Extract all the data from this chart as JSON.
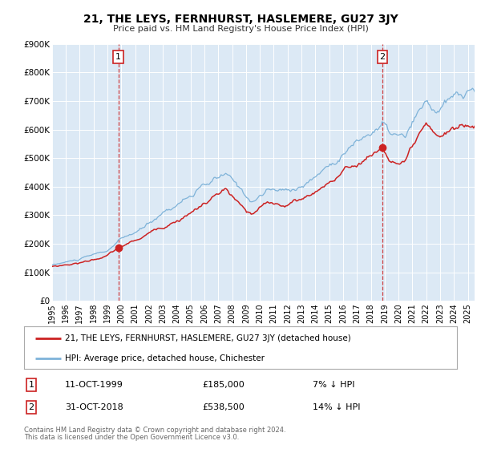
{
  "title": "21, THE LEYS, FERNHURST, HASLEMERE, GU27 3JY",
  "subtitle": "Price paid vs. HM Land Registry's House Price Index (HPI)",
  "ylim": [
    0,
    900000
  ],
  "yticks": [
    0,
    100000,
    200000,
    300000,
    400000,
    500000,
    600000,
    700000,
    800000,
    900000
  ],
  "ytick_labels": [
    "£0",
    "£100K",
    "£200K",
    "£300K",
    "£400K",
    "£500K",
    "£600K",
    "£700K",
    "£800K",
    "£900K"
  ],
  "xlim_start": 1995.0,
  "xlim_end": 2025.5,
  "xtick_years": [
    1995,
    1996,
    1997,
    1998,
    1999,
    2000,
    2001,
    2002,
    2003,
    2004,
    2005,
    2006,
    2007,
    2008,
    2009,
    2010,
    2011,
    2012,
    2013,
    2014,
    2015,
    2016,
    2017,
    2018,
    2019,
    2020,
    2021,
    2022,
    2023,
    2024,
    2025
  ],
  "plot_bg_color": "#dce9f5",
  "fig_bg_color": "#ffffff",
  "hpi_color": "#7fb3d9",
  "price_color": "#cc2222",
  "sale1_date_x": 1999.79,
  "sale1_price": 185000,
  "sale2_date_x": 2018.83,
  "sale2_price": 538500,
  "legend_label_price": "21, THE LEYS, FERNHURST, HASLEMERE, GU27 3JY (detached house)",
  "legend_label_hpi": "HPI: Average price, detached house, Chichester",
  "annotation1_label": "1",
  "annotation1_date": "11-OCT-1999",
  "annotation1_price": "£185,000",
  "annotation1_pct": "7% ↓ HPI",
  "annotation2_label": "2",
  "annotation2_date": "31-OCT-2018",
  "annotation2_price": "£538,500",
  "annotation2_pct": "14% ↓ HPI",
  "footer1": "Contains HM Land Registry data © Crown copyright and database right 2024.",
  "footer2": "This data is licensed under the Open Government Licence v3.0."
}
